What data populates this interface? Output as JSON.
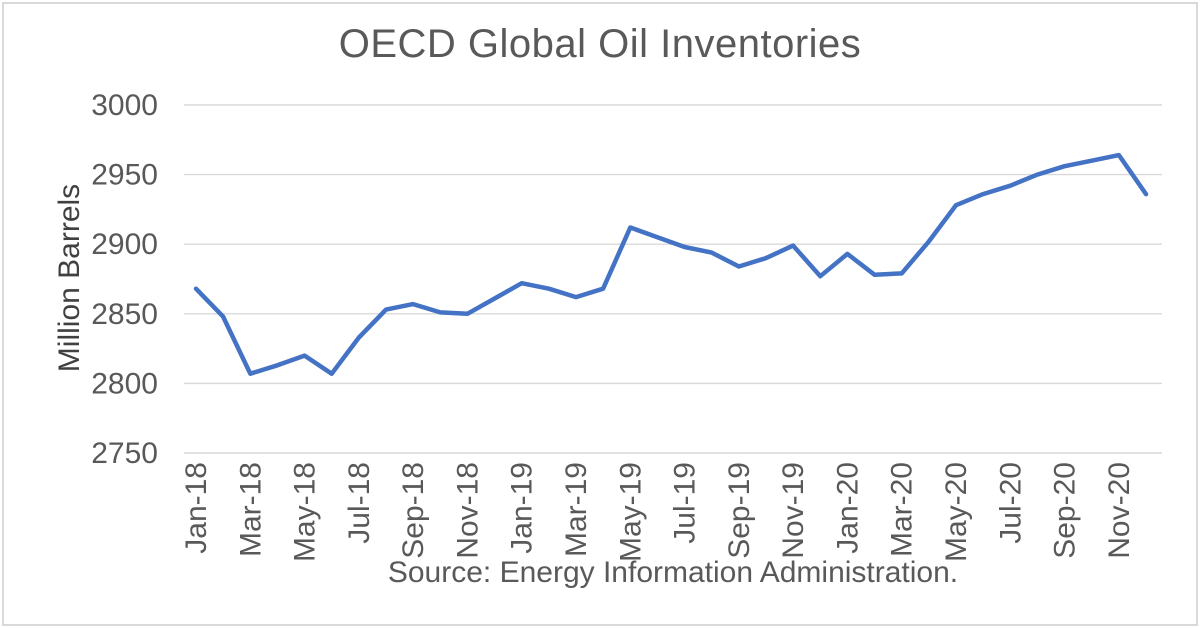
{
  "chart_data": {
    "type": "line",
    "title": "OECD Global Oil Inventories",
    "ylabel": "Million Barrels",
    "xlabel": "",
    "source_note": "Source: Energy Information Administration.",
    "legend": false,
    "grid": true,
    "ylim": [
      2750,
      3000
    ],
    "yticks": [
      2750,
      2800,
      2850,
      2900,
      2950,
      3000
    ],
    "x_tick_step": 2,
    "x_tick_labels": [
      "Jan-18",
      "Mar-18",
      "May-18",
      "Jul-18",
      "Sep-18",
      "Nov-18",
      "Jan-19",
      "Mar-19",
      "May-19",
      "Jul-19",
      "Sep-19",
      "Nov-19",
      "Jan-20",
      "Mar-20",
      "May-20",
      "Jul-20",
      "Sep-20",
      "Nov-20"
    ],
    "x": [
      "Jan-18",
      "Feb-18",
      "Mar-18",
      "Apr-18",
      "May-18",
      "Jun-18",
      "Jul-18",
      "Aug-18",
      "Sep-18",
      "Oct-18",
      "Nov-18",
      "Dec-18",
      "Jan-19",
      "Feb-19",
      "Mar-19",
      "Apr-19",
      "May-19",
      "Jun-19",
      "Jul-19",
      "Aug-19",
      "Sep-19",
      "Oct-19",
      "Nov-19",
      "Dec-19",
      "Jan-20",
      "Feb-20",
      "Mar-20",
      "Apr-20",
      "May-20",
      "Jun-20",
      "Jul-20",
      "Aug-20",
      "Sep-20",
      "Oct-20",
      "Nov-20",
      "Dec-20"
    ],
    "values": [
      2868,
      2848,
      2807,
      2813,
      2820,
      2807,
      2833,
      2853,
      2857,
      2851,
      2850,
      2861,
      2872,
      2868,
      2862,
      2868,
      2912,
      2905,
      2898,
      2894,
      2884,
      2890,
      2899,
      2877,
      2893,
      2878,
      2879,
      2902,
      2928,
      2936,
      2942,
      2950,
      2956,
      2960,
      2964,
      2936
    ],
    "line_color": "#4472C4",
    "text_color": "#595959",
    "grid_color": "#D9D9D9",
    "border_color": "#D9D9D9"
  }
}
